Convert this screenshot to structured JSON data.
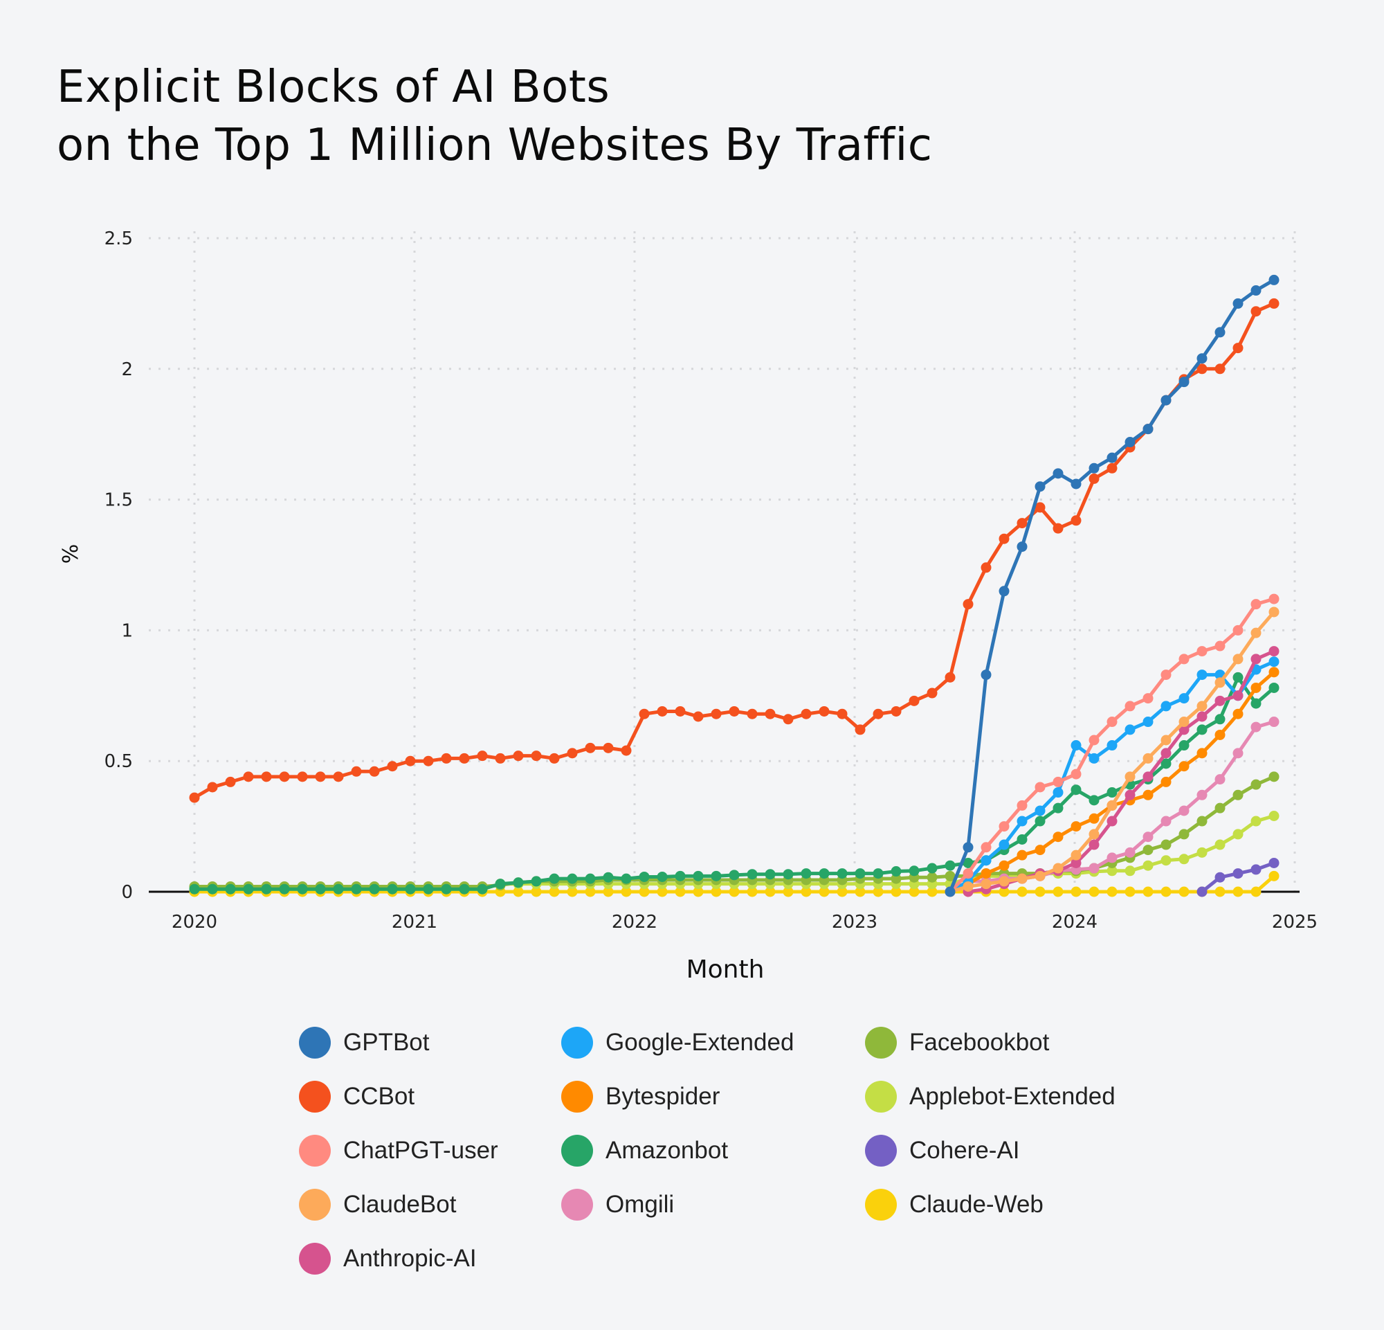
{
  "chart_data": {
    "type": "line",
    "title_lines": [
      "Explicit Blocks of AI Bots",
      "on the Top 1 Million Websites By Traffic"
    ],
    "xlabel": "Month",
    "ylabel": "%",
    "ylim": [
      0,
      2.5
    ],
    "grid": true,
    "legend_placement": "bottom",
    "x_ticks": [
      "2020",
      "2021",
      "2022",
      "2023",
      "2024",
      "2025"
    ],
    "y_ticks": [
      0,
      0.5,
      1,
      1.5,
      2,
      2.5
    ],
    "y_tick_labels": [
      "0",
      "0.5",
      "1",
      "1.5",
      "2",
      "2.5"
    ],
    "x": [
      "2020-01",
      "2020-02",
      "2020-03",
      "2020-04",
      "2020-05",
      "2020-06",
      "2020-07",
      "2020-08",
      "2020-09",
      "2020-10",
      "2020-11",
      "2020-12",
      "2021-01",
      "2021-02",
      "2021-03",
      "2021-04",
      "2021-05",
      "2021-06",
      "2021-07",
      "2021-08",
      "2021-09",
      "2021-10",
      "2021-11",
      "2021-12",
      "2022-01",
      "2022-02",
      "2022-03",
      "2022-04",
      "2022-05",
      "2022-06",
      "2022-07",
      "2022-08",
      "2022-09",
      "2022-10",
      "2022-11",
      "2022-12",
      "2023-01",
      "2023-02",
      "2023-03",
      "2023-04",
      "2023-05",
      "2023-06",
      "2023-07",
      "2023-08",
      "2023-09",
      "2023-10",
      "2023-11",
      "2023-12",
      "2024-01",
      "2024-02",
      "2024-03",
      "2024-04",
      "2024-05",
      "2024-06",
      "2024-07",
      "2024-08",
      "2024-09",
      "2024-10",
      "2024-11",
      "2024-12",
      "2025-01"
    ],
    "series": [
      {
        "name": "Claude-Web",
        "color": "#FAD10C",
        "values": [
          0,
          0,
          0,
          0,
          0,
          0,
          0,
          0,
          0,
          0,
          0,
          0,
          0,
          0,
          0,
          0,
          0,
          0,
          0,
          0,
          0,
          0,
          0,
          0,
          0,
          0,
          0,
          0,
          0,
          0,
          0,
          0,
          0,
          0,
          0,
          0,
          0,
          0,
          0,
          0,
          0,
          0,
          0,
          0,
          0,
          0,
          0,
          0,
          0,
          0,
          0,
          0,
          0,
          0,
          0,
          0,
          0,
          0,
          0,
          0,
          0.06
        ]
      },
      {
        "name": "Cohere-AI",
        "color": "#7460C4",
        "values": [
          null,
          null,
          null,
          null,
          null,
          null,
          null,
          null,
          null,
          null,
          null,
          null,
          null,
          null,
          null,
          null,
          null,
          null,
          null,
          null,
          null,
          null,
          null,
          null,
          null,
          null,
          null,
          null,
          null,
          null,
          null,
          null,
          null,
          null,
          null,
          null,
          null,
          null,
          null,
          null,
          null,
          null,
          null,
          null,
          null,
          null,
          null,
          null,
          null,
          null,
          null,
          null,
          null,
          null,
          null,
          null,
          0,
          0.055,
          0.07,
          0.085,
          0.11
        ]
      },
      {
        "name": "Applebot-Extended",
        "color": "#C4DE45",
        "values": [
          0.01,
          0.01,
          0.01,
          0.01,
          0.01,
          0.01,
          0.01,
          0.01,
          0.01,
          0.01,
          0.01,
          0.01,
          0.01,
          0.01,
          0.01,
          0.01,
          0.01,
          0.03,
          0.03,
          0.03,
          0.03,
          0.03,
          0.03,
          0.03,
          0.03,
          0.03,
          0.03,
          0.03,
          0.03,
          0.03,
          0.03,
          0.03,
          0.03,
          0.03,
          0.03,
          0.03,
          0.03,
          0.03,
          0.03,
          0.03,
          0.03,
          0.03,
          0.03,
          0.05,
          0.06,
          0.06,
          0.06,
          0.07,
          0.07,
          0.07,
          0.077,
          0.08,
          0.08,
          0.1,
          0.12,
          0.125,
          0.15,
          0.18,
          0.22,
          0.27,
          0.29
        ]
      },
      {
        "name": "Facebookbot",
        "color": "#8FB83A",
        "values": [
          0.02,
          0.02,
          0.02,
          0.02,
          0.02,
          0.02,
          0.02,
          0.02,
          0.02,
          0.02,
          0.02,
          0.02,
          0.02,
          0.02,
          0.02,
          0.02,
          0.02,
          0.025,
          0.035,
          0.04,
          0.04,
          0.04,
          0.04,
          0.045,
          0.045,
          0.045,
          0.045,
          0.045,
          0.045,
          0.045,
          0.045,
          0.045,
          0.045,
          0.045,
          0.045,
          0.045,
          0.045,
          0.05,
          0.05,
          0.05,
          0.055,
          0.055,
          0.06,
          0.06,
          0.07,
          0.07,
          0.07,
          0.07,
          0.08,
          0.08,
          0.09,
          0.11,
          0.13,
          0.16,
          0.18,
          0.22,
          0.27,
          0.32,
          0.37,
          0.41,
          0.44
        ]
      },
      {
        "name": "Omgili",
        "color": "#E688B3",
        "values": [
          null,
          null,
          null,
          null,
          null,
          null,
          null,
          null,
          null,
          null,
          null,
          null,
          null,
          null,
          null,
          null,
          null,
          null,
          null,
          null,
          null,
          null,
          null,
          null,
          null,
          null,
          null,
          null,
          null,
          null,
          null,
          null,
          null,
          null,
          null,
          null,
          null,
          null,
          null,
          null,
          null,
          null,
          0,
          0.04,
          0.04,
          0.05,
          0.05,
          0.06,
          0.08,
          0.085,
          0.09,
          0.13,
          0.15,
          0.21,
          0.27,
          0.31,
          0.37,
          0.43,
          0.53,
          0.63,
          0.65
        ]
      },
      {
        "name": "Amazonbot",
        "color": "#27A567",
        "values": [
          0.01,
          0.01,
          0.01,
          0.01,
          0.01,
          0.01,
          0.01,
          0.01,
          0.01,
          0.01,
          0.01,
          0.01,
          0.01,
          0.01,
          0.01,
          0.01,
          0.01,
          0.03,
          0.035,
          0.04,
          0.05,
          0.05,
          0.05,
          0.055,
          0.05,
          0.057,
          0.057,
          0.06,
          0.06,
          0.06,
          0.064,
          0.067,
          0.067,
          0.067,
          0.07,
          0.07,
          0.07,
          0.07,
          0.07,
          0.078,
          0.08,
          0.09,
          0.1,
          0.11,
          0.12,
          0.16,
          0.2,
          0.27,
          0.32,
          0.39,
          0.35,
          0.38,
          0.41,
          0.43,
          0.49,
          0.56,
          0.62,
          0.66,
          0.82,
          0.72,
          0.78
        ]
      },
      {
        "name": "Bytespider",
        "color": "#FF8A00",
        "values": [
          null,
          null,
          null,
          null,
          null,
          null,
          null,
          null,
          null,
          null,
          null,
          null,
          null,
          null,
          null,
          null,
          null,
          null,
          null,
          null,
          null,
          null,
          null,
          null,
          null,
          null,
          null,
          null,
          null,
          null,
          null,
          null,
          null,
          null,
          null,
          null,
          null,
          null,
          null,
          null,
          null,
          null,
          0,
          0.03,
          0.07,
          0.1,
          0.14,
          0.16,
          0.21,
          0.25,
          0.28,
          0.33,
          0.35,
          0.37,
          0.42,
          0.48,
          0.53,
          0.6,
          0.68,
          0.78,
          0.84
        ]
      },
      {
        "name": "Google-Extended",
        "color": "#1DA6F7",
        "values": [
          null,
          null,
          null,
          null,
          null,
          null,
          null,
          null,
          null,
          null,
          null,
          null,
          null,
          null,
          null,
          null,
          null,
          null,
          null,
          null,
          null,
          null,
          null,
          null,
          null,
          null,
          null,
          null,
          null,
          null,
          null,
          null,
          null,
          null,
          null,
          null,
          null,
          null,
          null,
          null,
          null,
          null,
          0,
          0.04,
          0.12,
          0.18,
          0.27,
          0.31,
          0.38,
          0.56,
          0.51,
          0.56,
          0.62,
          0.65,
          0.71,
          0.74,
          0.83,
          0.83,
          0.75,
          0.85,
          0.88
        ]
      },
      {
        "name": "Anthropic-AI",
        "color": "#D6538E",
        "values": [
          null,
          null,
          null,
          null,
          null,
          null,
          null,
          null,
          null,
          null,
          null,
          null,
          null,
          null,
          null,
          null,
          null,
          null,
          null,
          null,
          null,
          null,
          null,
          null,
          null,
          null,
          null,
          null,
          null,
          null,
          null,
          null,
          null,
          null,
          null,
          null,
          null,
          null,
          null,
          null,
          null,
          null,
          null,
          0,
          0.01,
          0.03,
          0.05,
          0.07,
          0.08,
          0.11,
          0.18,
          0.27,
          0.37,
          0.44,
          0.53,
          0.62,
          0.67,
          0.73,
          0.75,
          0.89,
          0.92
        ]
      },
      {
        "name": "ClaudeBot",
        "color": "#FDAA5A",
        "values": [
          null,
          null,
          null,
          null,
          null,
          null,
          null,
          null,
          null,
          null,
          null,
          null,
          null,
          null,
          null,
          null,
          null,
          null,
          null,
          null,
          null,
          null,
          null,
          null,
          null,
          null,
          null,
          null,
          null,
          null,
          null,
          null,
          null,
          null,
          null,
          null,
          null,
          null,
          null,
          null,
          null,
          null,
          0,
          0.02,
          0.03,
          0.04,
          0.05,
          0.06,
          0.09,
          0.14,
          0.22,
          0.33,
          0.44,
          0.51,
          0.58,
          0.65,
          0.71,
          0.8,
          0.89,
          0.99,
          1.07
        ]
      },
      {
        "name": "ChatPGT-user",
        "color": "#FF8A80",
        "values": [
          null,
          null,
          null,
          null,
          null,
          null,
          null,
          null,
          null,
          null,
          null,
          null,
          null,
          null,
          null,
          null,
          null,
          null,
          null,
          null,
          null,
          null,
          null,
          null,
          null,
          null,
          null,
          null,
          null,
          null,
          null,
          null,
          null,
          null,
          null,
          null,
          null,
          null,
          null,
          null,
          null,
          null,
          0,
          0.07,
          0.17,
          0.25,
          0.33,
          0.4,
          0.42,
          0.45,
          0.58,
          0.65,
          0.71,
          0.74,
          0.83,
          0.89,
          0.92,
          0.94,
          1.0,
          1.1,
          1.12
        ]
      },
      {
        "name": "CCBot",
        "color": "#F4511E",
        "values": [
          0.36,
          0.4,
          0.42,
          0.44,
          0.44,
          0.44,
          0.44,
          0.44,
          0.44,
          0.46,
          0.46,
          0.48,
          0.5,
          0.5,
          0.51,
          0.51,
          0.52,
          0.51,
          0.52,
          0.52,
          0.51,
          0.53,
          0.55,
          0.55,
          0.54,
          0.68,
          0.69,
          0.69,
          0.67,
          0.68,
          0.69,
          0.68,
          0.68,
          0.66,
          0.68,
          0.69,
          0.68,
          0.62,
          0.68,
          0.69,
          0.73,
          0.76,
          0.82,
          1.1,
          1.24,
          1.35,
          1.41,
          1.47,
          1.39,
          1.42,
          1.58,
          1.62,
          1.7,
          1.77,
          1.88,
          1.96,
          2.0,
          2.0,
          2.08,
          2.22,
          2.25
        ]
      },
      {
        "name": "GPTBot",
        "color": "#2E75B6",
        "values": [
          null,
          null,
          null,
          null,
          null,
          null,
          null,
          null,
          null,
          null,
          null,
          null,
          null,
          null,
          null,
          null,
          null,
          null,
          null,
          null,
          null,
          null,
          null,
          null,
          null,
          null,
          null,
          null,
          null,
          null,
          null,
          null,
          null,
          null,
          null,
          null,
          null,
          null,
          null,
          null,
          null,
          null,
          0,
          0.17,
          0.83,
          1.15,
          1.32,
          1.55,
          1.6,
          1.56,
          1.62,
          1.66,
          1.72,
          1.77,
          1.88,
          1.95,
          2.04,
          2.14,
          2.25,
          2.3,
          2.34
        ]
      }
    ],
    "legend_order": [
      [
        "GPTBot",
        "CCBot",
        "ChatPGT-user",
        "ClaudeBot",
        "Anthropic-AI"
      ],
      [
        "Google-Extended",
        "Bytespider",
        "Amazonbot",
        "Omgili"
      ],
      [
        "Facebookbot",
        "Applebot-Extended",
        "Cohere-AI",
        "Claude-Web"
      ]
    ]
  }
}
